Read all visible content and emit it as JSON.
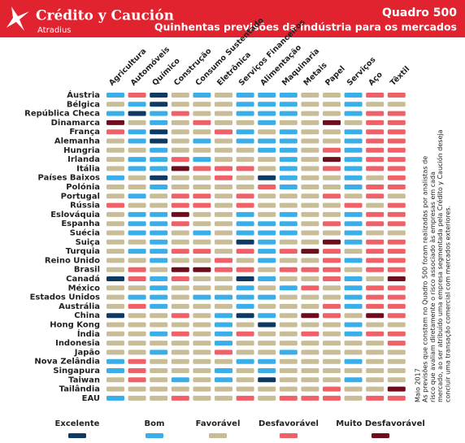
{
  "header": {
    "brand": "Crédito y Caución",
    "brand_sub": "Atradius",
    "code": "Quadro 500",
    "title": "Quinhentas previsões da indústria para os mercados"
  },
  "columns": [
    "Agricultura",
    "Automóveis",
    "Químico",
    "Construção",
    "Consumo Sustentado",
    "Eletrônica",
    "Serviços Financeiros",
    "Alimentação",
    "Maquinaria",
    "Metais",
    "Papel",
    "Serviços",
    "Aço",
    "Têxtil"
  ],
  "legend": [
    {
      "label": "Excelente",
      "color": "#0d3a63"
    },
    {
      "label": "Bom",
      "color": "#3aaee8"
    },
    {
      "label": "Favorável",
      "color": "#c8bd97"
    },
    {
      "label": "Desfavorável",
      "color": "#f06067"
    },
    {
      "label": "Muito Desfavorável",
      "color": "#6e0e1c"
    }
  ],
  "rows": [
    {
      "label": "Áustria",
      "cells": [
        1,
        3,
        0,
        2,
        1,
        2,
        1,
        1,
        1,
        2,
        2,
        1,
        3,
        3
      ]
    },
    {
      "label": "Bélgica",
      "cells": [
        2,
        1,
        0,
        2,
        2,
        2,
        1,
        1,
        1,
        2,
        2,
        1,
        2,
        2
      ]
    },
    {
      "label": "República Checa",
      "cells": [
        1,
        0,
        1,
        3,
        2,
        2,
        1,
        1,
        1,
        2,
        2,
        1,
        3,
        3
      ]
    },
    {
      "label": "Dinamarca",
      "cells": [
        4,
        2,
        1,
        2,
        3,
        2,
        2,
        1,
        2,
        2,
        4,
        2,
        3,
        3
      ]
    },
    {
      "label": "França",
      "cells": [
        3,
        1,
        0,
        2,
        2,
        3,
        1,
        2,
        1,
        2,
        2,
        1,
        3,
        3
      ]
    },
    {
      "label": "Alemanha",
      "cells": [
        2,
        1,
        0,
        2,
        1,
        2,
        1,
        1,
        1,
        2,
        2,
        1,
        3,
        3
      ]
    },
    {
      "label": "Hungria",
      "cells": [
        2,
        2,
        1,
        2,
        2,
        2,
        2,
        1,
        1,
        2,
        3,
        1,
        3,
        3
      ]
    },
    {
      "label": "Irlanda",
      "cells": [
        2,
        1,
        1,
        3,
        1,
        2,
        2,
        2,
        1,
        2,
        4,
        1,
        3,
        3
      ]
    },
    {
      "label": "Itália",
      "cells": [
        2,
        1,
        1,
        4,
        3,
        3,
        3,
        2,
        1,
        2,
        3,
        1,
        3,
        3
      ]
    },
    {
      "label": "Países Baixos",
      "cells": [
        1,
        2,
        0,
        2,
        2,
        3,
        2,
        0,
        1,
        2,
        2,
        1,
        2,
        3
      ]
    },
    {
      "label": "Polónia",
      "cells": [
        2,
        2,
        1,
        2,
        2,
        2,
        2,
        3,
        1,
        2,
        2,
        1,
        3,
        3
      ]
    },
    {
      "label": "Portugal",
      "cells": [
        2,
        1,
        2,
        3,
        3,
        2,
        3,
        2,
        2,
        2,
        3,
        2,
        3,
        2
      ]
    },
    {
      "label": "Rússia",
      "cells": [
        3,
        2,
        2,
        3,
        3,
        2,
        3,
        2,
        2,
        2,
        2,
        3,
        2,
        3
      ]
    },
    {
      "label": "Eslováquia",
      "cells": [
        2,
        1,
        1,
        4,
        2,
        2,
        1,
        2,
        1,
        2,
        2,
        1,
        3,
        3
      ]
    },
    {
      "label": "Espanha",
      "cells": [
        2,
        1,
        1,
        3,
        2,
        2,
        1,
        1,
        1,
        2,
        3,
        1,
        3,
        3
      ]
    },
    {
      "label": "Suécia",
      "cells": [
        2,
        1,
        1,
        2,
        1,
        2,
        1,
        1,
        1,
        2,
        2,
        1,
        2,
        2
      ]
    },
    {
      "label": "Suiça",
      "cells": [
        2,
        2,
        1,
        2,
        2,
        2,
        0,
        1,
        2,
        2,
        4,
        1,
        3,
        3
      ]
    },
    {
      "label": "Turquia",
      "cells": [
        2,
        1,
        1,
        3,
        3,
        2,
        3,
        1,
        3,
        4,
        3,
        2,
        3,
        3
      ]
    },
    {
      "label": "Reino Unido",
      "cells": [
        2,
        2,
        1,
        2,
        2,
        3,
        2,
        1,
        2,
        2,
        3,
        1,
        3,
        3
      ]
    },
    {
      "label": "Brasil",
      "cells": [
        2,
        3,
        2,
        4,
        4,
        3,
        3,
        2,
        3,
        3,
        3,
        2,
        3,
        3
      ]
    },
    {
      "label": "Canadá",
      "cells": [
        0,
        3,
        1,
        3,
        2,
        2,
        0,
        1,
        2,
        2,
        3,
        1,
        2,
        4
      ]
    },
    {
      "label": "México",
      "cells": [
        2,
        2,
        1,
        2,
        2,
        2,
        1,
        2,
        1,
        3,
        2,
        1,
        3,
        3
      ]
    },
    {
      "label": "Estados Unidos",
      "cells": [
        2,
        1,
        1,
        2,
        1,
        1,
        1,
        1,
        2,
        2,
        2,
        1,
        3,
        3
      ]
    },
    {
      "label": "Austrália",
      "cells": [
        2,
        3,
        1,
        2,
        2,
        2,
        1,
        2,
        2,
        2,
        3,
        1,
        3,
        3
      ]
    },
    {
      "label": "China",
      "cells": [
        0,
        2,
        2,
        3,
        2,
        1,
        0,
        1,
        2,
        4,
        3,
        2,
        4,
        3
      ]
    },
    {
      "label": "Hong Kong",
      "cells": [
        2,
        2,
        2,
        2,
        2,
        1,
        2,
        0,
        2,
        2,
        2,
        1,
        2,
        2
      ]
    },
    {
      "label": "Índia",
      "cells": [
        2,
        2,
        1,
        3,
        2,
        1,
        3,
        2,
        2,
        3,
        2,
        1,
        3,
        3
      ]
    },
    {
      "label": "Indonesia",
      "cells": [
        2,
        2,
        2,
        2,
        2,
        1,
        2,
        2,
        2,
        2,
        2,
        2,
        2,
        3
      ]
    },
    {
      "label": "Japão",
      "cells": [
        2,
        2,
        1,
        2,
        2,
        3,
        2,
        2,
        1,
        2,
        2,
        2,
        2,
        2
      ]
    },
    {
      "label": "Nova Zelândia",
      "cells": [
        1,
        3,
        2,
        2,
        2,
        2,
        1,
        1,
        2,
        2,
        2,
        1,
        2,
        2
      ]
    },
    {
      "label": "Singapura",
      "cells": [
        1,
        3,
        2,
        2,
        2,
        1,
        2,
        1,
        2,
        2,
        2,
        2,
        2,
        2
      ]
    },
    {
      "label": "Taiwan",
      "cells": [
        2,
        3,
        2,
        1,
        2,
        1,
        2,
        0,
        2,
        2,
        2,
        1,
        2,
        2
      ]
    },
    {
      "label": "Tailândia",
      "cells": [
        2,
        2,
        2,
        2,
        2,
        2,
        2,
        2,
        2,
        2,
        3,
        2,
        2,
        4
      ]
    },
    {
      "label": "EAU",
      "cells": [
        1,
        2,
        2,
        3,
        2,
        2,
        3,
        2,
        3,
        3,
        3,
        2,
        3,
        3
      ]
    }
  ],
  "note": {
    "lines": [
      "Maio 2017",
      "As previsões que constam no Quadro 500 foram realizadas por analistas de",
      "risco que avaliam diretamente o risco associado às empresas em cada",
      "mercado, ao ser atribuído uma empresa segmentada pela Crédito y Caución deseja",
      "concluir uma transação comercial com mercados exteriores."
    ]
  }
}
